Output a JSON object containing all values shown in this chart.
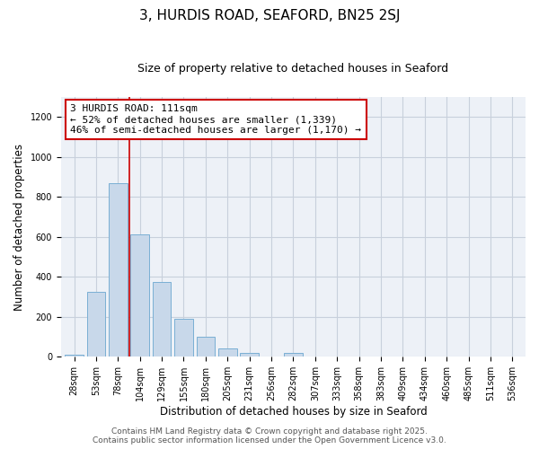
{
  "title": "3, HURDIS ROAD, SEAFORD, BN25 2SJ",
  "subtitle": "Size of property relative to detached houses in Seaford",
  "xlabel": "Distribution of detached houses by size in Seaford",
  "ylabel": "Number of detached properties",
  "bar_labels": [
    "28sqm",
    "53sqm",
    "78sqm",
    "104sqm",
    "129sqm",
    "155sqm",
    "180sqm",
    "205sqm",
    "231sqm",
    "256sqm",
    "282sqm",
    "307sqm",
    "333sqm",
    "358sqm",
    "383sqm",
    "409sqm",
    "434sqm",
    "460sqm",
    "485sqm",
    "511sqm",
    "536sqm"
  ],
  "bar_values": [
    10,
    325,
    870,
    610,
    375,
    190,
    100,
    42,
    20,
    0,
    18,
    0,
    0,
    0,
    0,
    0,
    0,
    0,
    0,
    0,
    0
  ],
  "bar_color": "#c8d8ea",
  "bar_edgecolor": "#7aafd4",
  "ylim": [
    0,
    1300
  ],
  "yticks": [
    0,
    200,
    400,
    600,
    800,
    1000,
    1200
  ],
  "vline_x_idx": 2.5,
  "annotation_title": "3 HURDIS ROAD: 111sqm",
  "annotation_line1": "← 52% of detached houses are smaller (1,339)",
  "annotation_line2": "46% of semi-detached houses are larger (1,170) →",
  "annotation_box_color": "#ffffff",
  "annotation_box_edgecolor": "#cc0000",
  "vline_color": "#cc0000",
  "grid_color": "#c8d0dc",
  "background_color": "#edf1f7",
  "footer_line1": "Contains HM Land Registry data © Crown copyright and database right 2025.",
  "footer_line2": "Contains public sector information licensed under the Open Government Licence v3.0.",
  "title_fontsize": 11,
  "subtitle_fontsize": 9,
  "axis_label_fontsize": 8.5,
  "tick_fontsize": 7,
  "annotation_fontsize": 8,
  "footer_fontsize": 6.5
}
